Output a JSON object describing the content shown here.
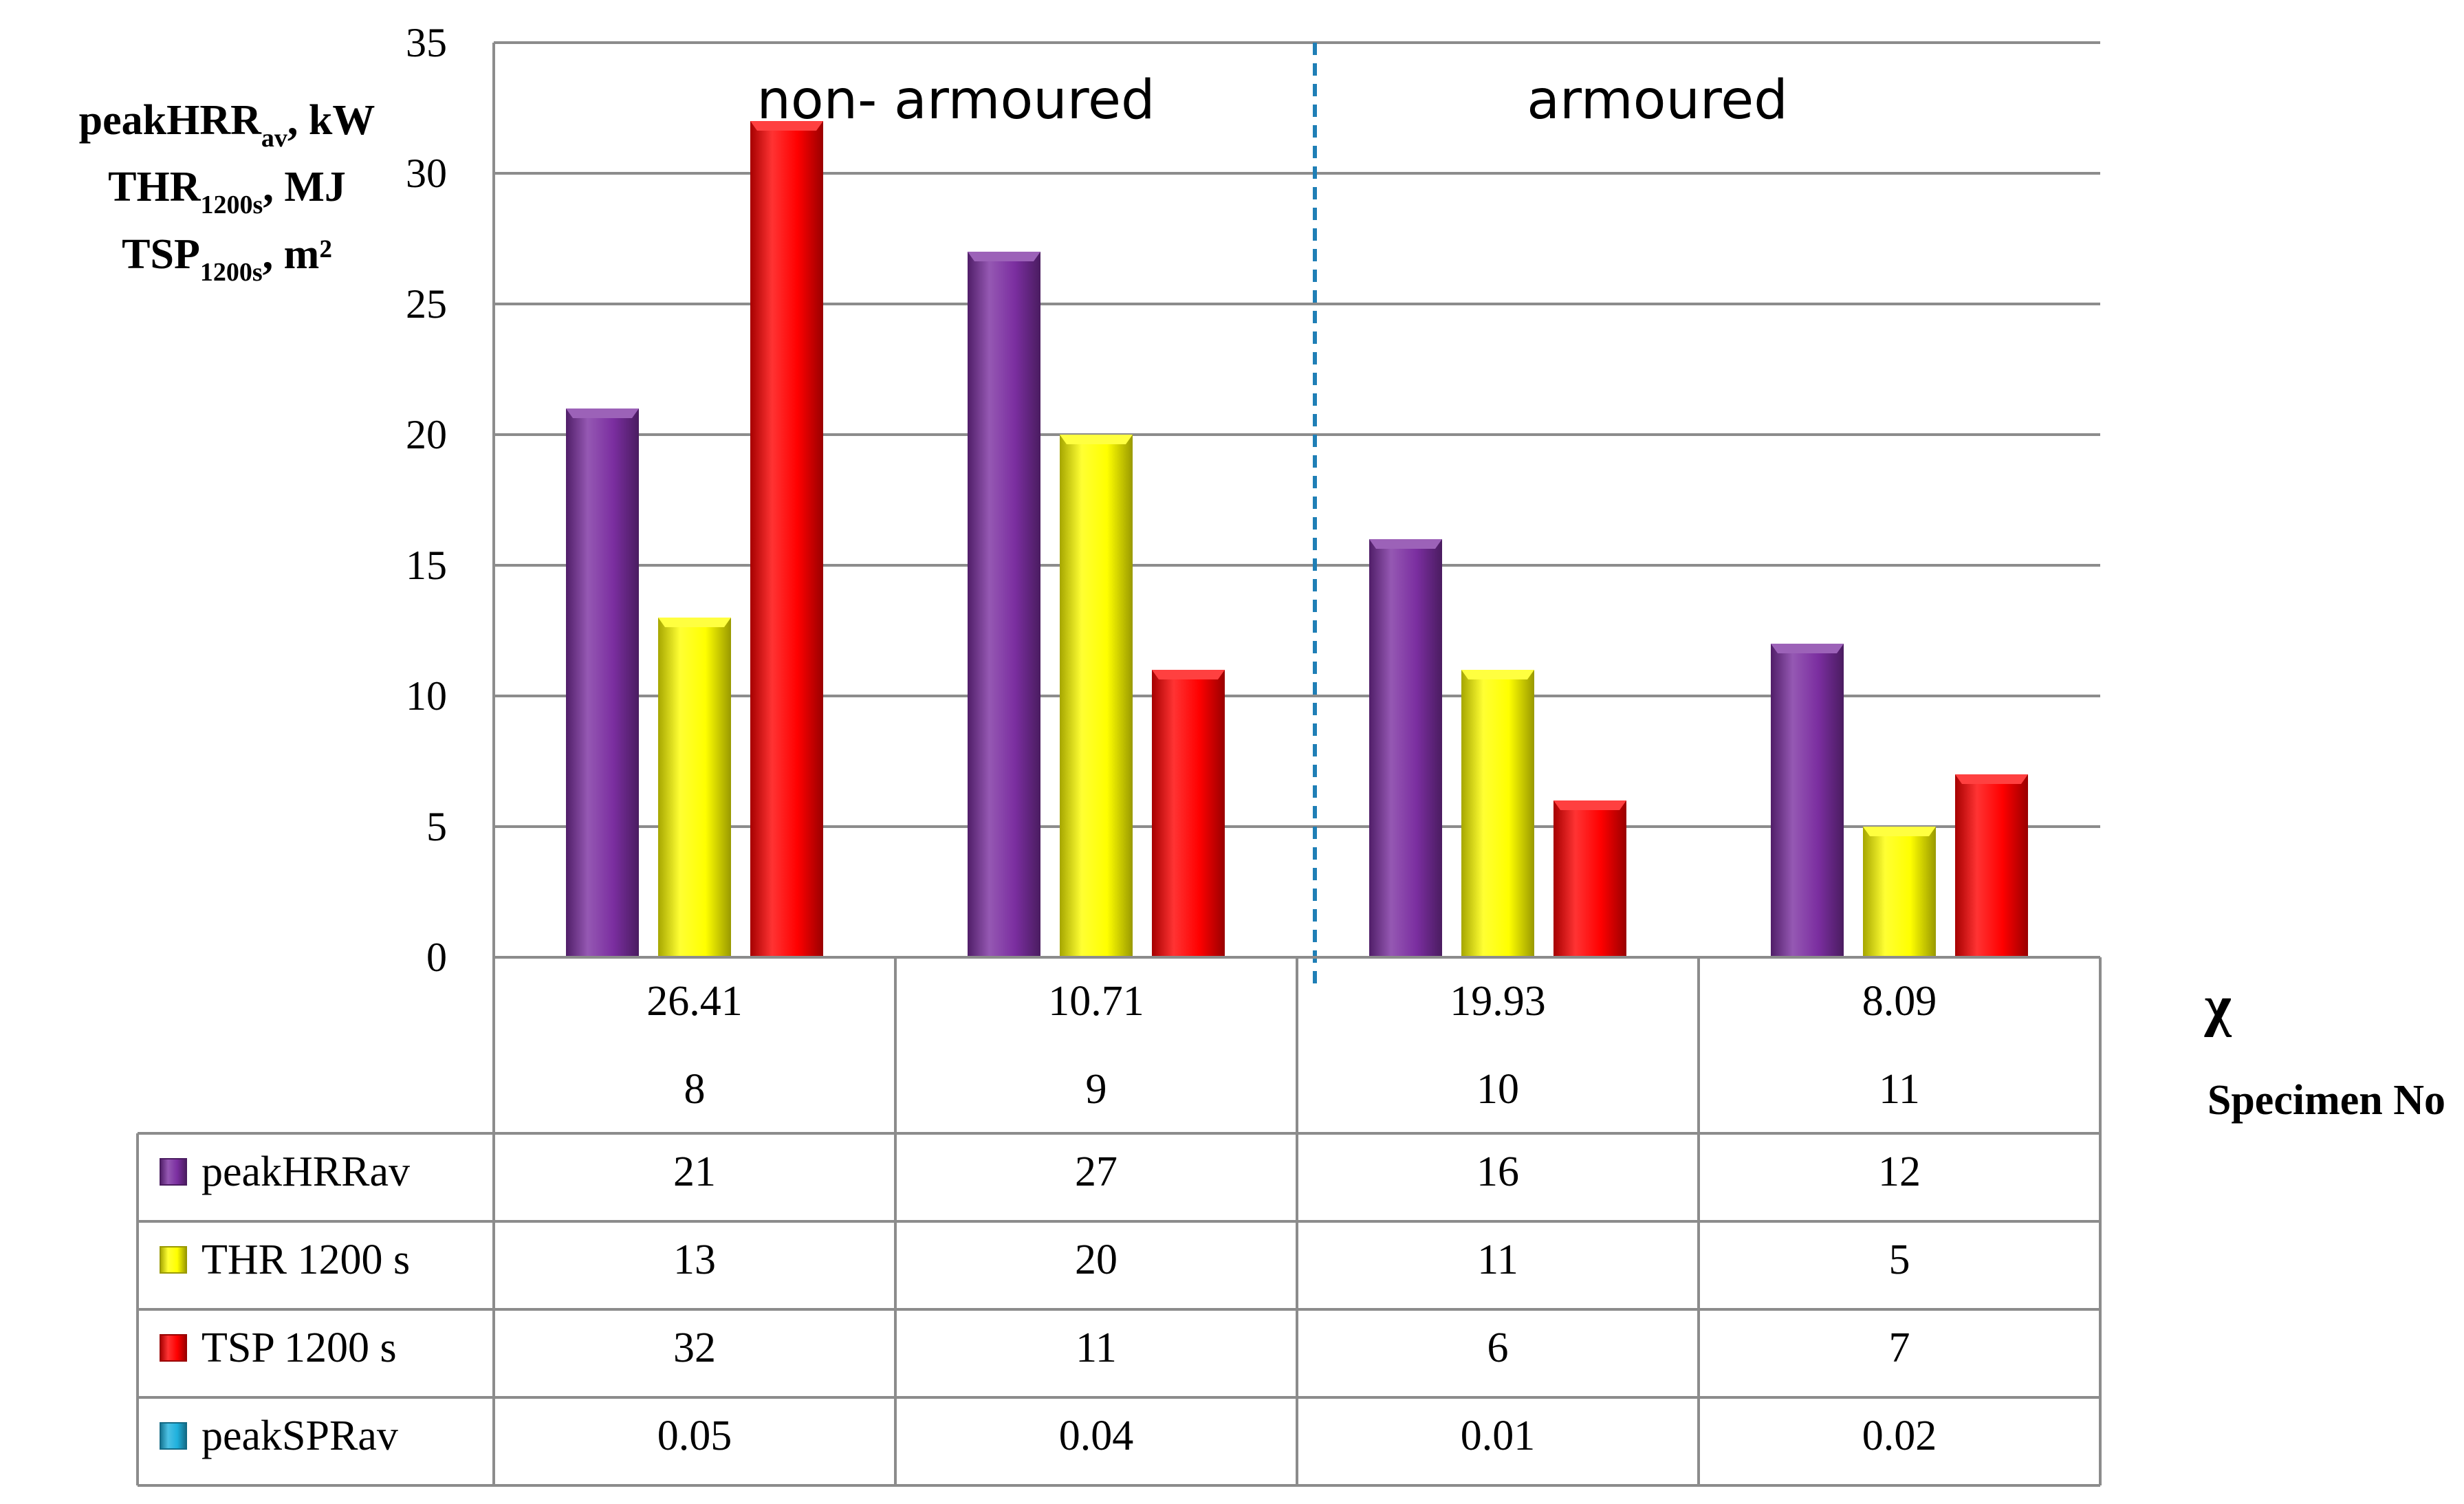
{
  "chart_data": {
    "type": "bar",
    "ylabel": {
      "lines": [
        {
          "main": "peakHRR",
          "sub": "av",
          "rest": ", kW"
        },
        {
          "main": "THR",
          "sub": "1200s",
          "rest": ", MJ"
        },
        {
          "main": "TSP",
          "sub": "1200s",
          "rest": ", m²"
        }
      ]
    },
    "ylim": [
      0,
      35
    ],
    "yticks": [
      "0",
      "5",
      "10",
      "15",
      "20",
      "25",
      "30",
      "35"
    ],
    "grid": true,
    "regions": [
      {
        "label": "non- armoured"
      },
      {
        "label": "armoured"
      }
    ],
    "chi_label": "χ",
    "specimen_label": "Specimen No",
    "chi_values": [
      "26.41",
      "10.71",
      "19.93",
      "8.09"
    ],
    "categories": [
      "8",
      "9",
      "10",
      "11"
    ],
    "series": [
      {
        "name": "peakHRRav",
        "color": "#7b2ea0",
        "values": [
          21,
          27,
          16,
          12
        ],
        "labels": [
          "21",
          "27",
          "16",
          "12"
        ],
        "plotted": true
      },
      {
        "name": "THR 1200 s",
        "color": "#ffff00",
        "values": [
          13,
          20,
          11,
          5
        ],
        "labels": [
          "13",
          "20",
          "11",
          "5"
        ],
        "plotted": true
      },
      {
        "name": "TSP 1200 s",
        "color": "#ff0000",
        "values": [
          32,
          11,
          6,
          7
        ],
        "labels": [
          "32",
          "11",
          "6",
          "7"
        ],
        "plotted": true
      },
      {
        "name": "peakSPRav",
        "color": "#1fb1dd",
        "values": [
          0.05,
          0.04,
          0.01,
          0.02
        ],
        "labels": [
          "0.05",
          "0.04",
          "0.01",
          "0.02"
        ],
        "plotted": false
      }
    ],
    "legend_placement": "table-left"
  }
}
